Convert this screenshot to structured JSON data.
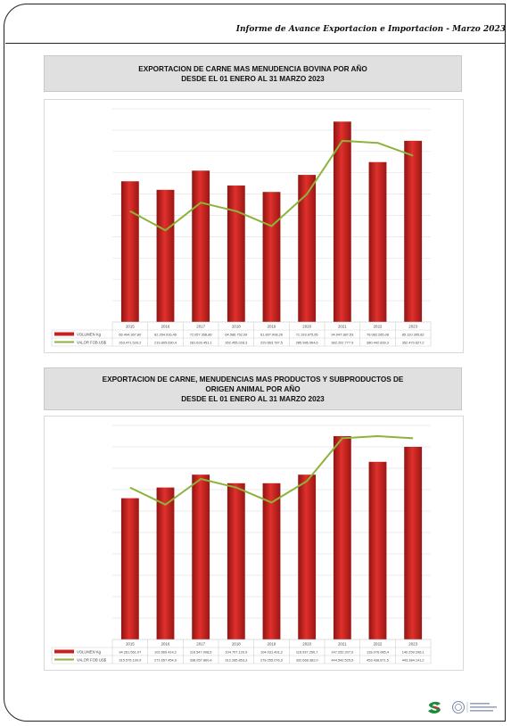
{
  "header": {
    "report_title": "Informe de Avance Exportacion e Importacion - Marzo 2023"
  },
  "chart_data": [
    {
      "type": "bar",
      "title_lines": [
        "EXPORTACION DE CARNE MAS MENUDENCIA BOVINA POR AÑO",
        "DESDE EL 01 ENERO AL 31 MARZO 2023"
      ],
      "categories": [
        "2015",
        "2016",
        "2017",
        "2018",
        "2019",
        "2020",
        "2021",
        "2022",
        "2023"
      ],
      "ylim": [
        0,
        100
      ],
      "grid": true,
      "series": [
        {
          "name": "VOLUMEN Kg",
          "kind": "bar",
          "color": "#c8201e",
          "values": [
            66,
            62,
            71,
            64,
            61,
            69,
            94,
            75,
            85
          ],
          "labels": [
            "66.494.367,80",
            "62.264.916,45",
            "72.057.358,86",
            "64.586.752,09",
            "61.807.908,26",
            "71.193.975,95",
            "94.947.387,53",
            "78.082.265,08",
            "85.120.395,82"
          ]
        },
        {
          "name": "VALOR FOB US$",
          "kind": "line",
          "color": "#8db33a",
          "values": [
            52,
            43,
            56,
            52,
            45,
            60,
            85,
            84,
            78
          ],
          "labels": [
            "263.471.539,2",
            "219.805.630,4",
            "281.633.451,1",
            "262.455.028,3",
            "229.663.787,5",
            "285.986.064,6",
            "382.202.777,9",
            "380.442.839,3",
            "352.470.627,2"
          ]
        }
      ]
    },
    {
      "type": "bar",
      "title_lines": [
        "EXPORTACION DE CARNE, MENUDENCIAS MAS PRODUCTOS Y SUBPRODUCTOS DE",
        "ORIGEN ANIMAL POR AÑO",
        "DESDE EL 01 ENERO AL 31 MARZO 2023"
      ],
      "categories": [
        "2015",
        "2016",
        "2017",
        "2018",
        "2019",
        "2020",
        "2021",
        "2022",
        "2023"
      ],
      "ylim": [
        0,
        100
      ],
      "grid": true,
      "series": [
        {
          "name": "VOLUMEN Kg",
          "kind": "bar",
          "color": "#c8201e",
          "values": [
            66,
            71,
            77,
            73,
            73,
            77,
            95,
            83,
            90
          ],
          "labels": [
            "94.261.561,07",
            "102.669.414,2",
            "116.547.008,5",
            "104.707.120,9",
            "104.031.491,2",
            "116.937.250,7",
            "147.252.207,0",
            "128.076.085,4",
            "140.259.296,1"
          ]
        },
        {
          "name": "VALOR FOB US$",
          "kind": "line",
          "color": "#8db33a",
          "values": [
            71,
            63,
            75,
            71,
            64,
            74,
            94,
            95,
            94
          ],
          "labels": [
            "315.575.190,9",
            "271.657.454,9",
            "338.957.860,4",
            "312.285.853,3",
            "278.255.076,3",
            "332.668.382,0",
            "444.542.525,5",
            "453.438.871,5",
            "443.384.141,2"
          ]
        }
      ]
    }
  ]
}
